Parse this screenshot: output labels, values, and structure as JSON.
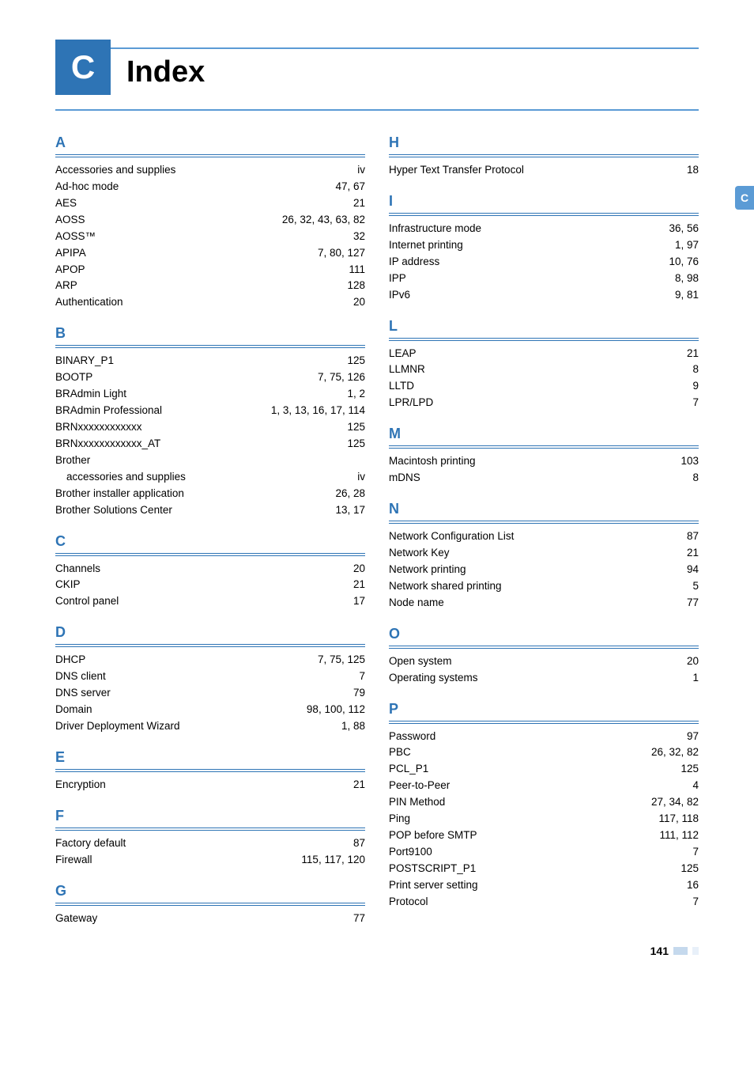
{
  "chapter": {
    "letter": "C",
    "title": "Index"
  },
  "sideTab": "C",
  "pageNumber": "141",
  "columns": [
    {
      "sections": [
        {
          "letter": "A",
          "entries": [
            {
              "label": "Accessories and supplies",
              "pages": "iv"
            },
            {
              "label": "Ad-hoc mode",
              "pages": "47, 67"
            },
            {
              "label": "AES",
              "pages": "21"
            },
            {
              "label": "AOSS",
              "pages": "26, 32, 43, 63, 82"
            },
            {
              "label": "AOSS™",
              "pages": "32"
            },
            {
              "label": "APIPA",
              "pages": "7, 80, 127"
            },
            {
              "label": "APOP",
              "pages": "111"
            },
            {
              "label": "ARP",
              "pages": "128"
            },
            {
              "label": "Authentication",
              "pages": "20"
            }
          ]
        },
        {
          "letter": "B",
          "entries": [
            {
              "label": "BINARY_P1",
              "pages": "125"
            },
            {
              "label": "BOOTP",
              "pages": "7, 75, 126"
            },
            {
              "label": "BRAdmin Light",
              "pages": "1, 2"
            },
            {
              "label": "BRAdmin Professional",
              "pages": "1, 3, 13, 16, 17, 114"
            },
            {
              "label": "BRNxxxxxxxxxxxx",
              "pages": "125"
            },
            {
              "label": "BRNxxxxxxxxxxxx_AT",
              "pages": "125"
            },
            {
              "label": "Brother",
              "pages": "",
              "nodots": true
            },
            {
              "label": "accessories and supplies",
              "pages": "iv",
              "indent": true
            },
            {
              "label": "Brother installer application",
              "pages": "26, 28"
            },
            {
              "label": "Brother Solutions Center",
              "pages": "13, 17"
            }
          ]
        },
        {
          "letter": "C",
          "entries": [
            {
              "label": "Channels",
              "pages": "20"
            },
            {
              "label": "CKIP",
              "pages": "21"
            },
            {
              "label": "Control panel",
              "pages": "17"
            }
          ]
        },
        {
          "letter": "D",
          "entries": [
            {
              "label": "DHCP",
              "pages": "7, 75, 125"
            },
            {
              "label": "DNS client",
              "pages": "7"
            },
            {
              "label": "DNS server",
              "pages": "79"
            },
            {
              "label": "Domain",
              "pages": "98, 100, 112"
            },
            {
              "label": "Driver Deployment Wizard",
              "pages": "1, 88"
            }
          ]
        },
        {
          "letter": "E",
          "entries": [
            {
              "label": "Encryption",
              "pages": "21"
            }
          ]
        },
        {
          "letter": "F",
          "entries": [
            {
              "label": "Factory default",
              "pages": "87"
            },
            {
              "label": "Firewall",
              "pages": "115, 117, 120"
            }
          ]
        },
        {
          "letter": "G",
          "entries": [
            {
              "label": "Gateway",
              "pages": "77"
            }
          ]
        }
      ]
    },
    {
      "sections": [
        {
          "letter": "H",
          "entries": [
            {
              "label": "Hyper Text Transfer Protocol",
              "pages": "18"
            }
          ]
        },
        {
          "letter": "I",
          "entries": [
            {
              "label": "Infrastructure mode",
              "pages": "36, 56"
            },
            {
              "label": "Internet printing",
              "pages": "1, 97"
            },
            {
              "label": "IP address",
              "pages": "10, 76"
            },
            {
              "label": "IPP",
              "pages": "8, 98"
            },
            {
              "label": "IPv6",
              "pages": "9, 81"
            }
          ]
        },
        {
          "letter": "L",
          "entries": [
            {
              "label": "LEAP",
              "pages": "21"
            },
            {
              "label": "LLMNR",
              "pages": "8"
            },
            {
              "label": "LLTD",
              "pages": "9"
            },
            {
              "label": "LPR/LPD",
              "pages": "7"
            }
          ]
        },
        {
          "letter": "M",
          "entries": [
            {
              "label": "Macintosh printing",
              "pages": "103"
            },
            {
              "label": "mDNS",
              "pages": "8"
            }
          ]
        },
        {
          "letter": "N",
          "entries": [
            {
              "label": "Network Configuration List",
              "pages": "87"
            },
            {
              "label": "Network Key",
              "pages": "21"
            },
            {
              "label": "Network printing",
              "pages": "94"
            },
            {
              "label": "Network shared printing",
              "pages": "5"
            },
            {
              "label": "Node name",
              "pages": "77"
            }
          ]
        },
        {
          "letter": "O",
          "entries": [
            {
              "label": "Open system",
              "pages": "20"
            },
            {
              "label": "Operating systems",
              "pages": "1"
            }
          ]
        },
        {
          "letter": "P",
          "entries": [
            {
              "label": "Password",
              "pages": "97"
            },
            {
              "label": "PBC",
              "pages": "26, 32, 82"
            },
            {
              "label": "PCL_P1",
              "pages": "125"
            },
            {
              "label": "Peer-to-Peer",
              "pages": "4"
            },
            {
              "label": "PIN Method",
              "pages": "27, 34, 82"
            },
            {
              "label": "Ping",
              "pages": "117, 118"
            },
            {
              "label": "POP before SMTP",
              "pages": "111, 112"
            },
            {
              "label": "Port9100",
              "pages": "7"
            },
            {
              "label": "POSTSCRIPT_P1",
              "pages": "125"
            },
            {
              "label": "Print server setting",
              "pages": "16"
            },
            {
              "label": "Protocol",
              "pages": "7"
            }
          ]
        }
      ]
    }
  ]
}
